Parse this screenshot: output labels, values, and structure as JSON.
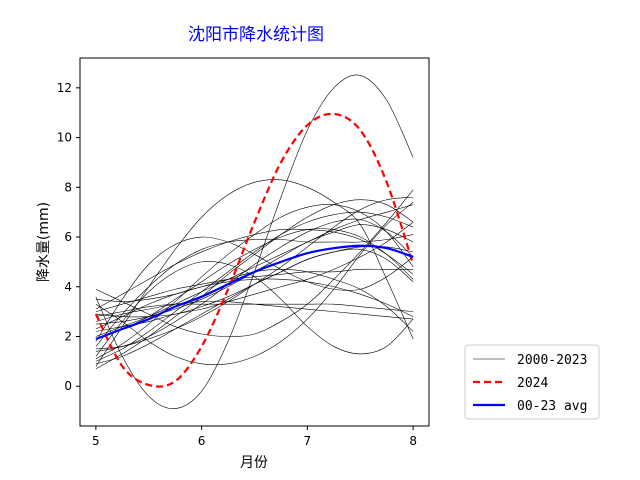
{
  "chart_data": {
    "type": "line",
    "title": "沈阳市降水统计图",
    "xlabel": "月份",
    "ylabel": "降水量(mm)",
    "xlim": [
      4.85,
      8.15
    ],
    "ylim": [
      -1.6,
      13.2
    ],
    "xticks": [
      5,
      6,
      7,
      8
    ],
    "yticks": [
      0,
      2,
      4,
      6,
      8,
      10,
      12
    ],
    "grid": false,
    "legend_position": "bottom-right outside",
    "x": [
      5,
      5.25,
      5.5,
      5.75,
      6,
      6.25,
      6.5,
      6.75,
      7,
      7.25,
      7.5,
      7.75,
      8
    ],
    "series": [
      {
        "name": "2000-2023",
        "color": "#000000",
        "style": "solid",
        "width": 0.6,
        "group": "history",
        "lines": [
          [
            3.6,
            1.2,
            -0.4,
            -0.9,
            -0.2,
            1.8,
            4.6,
            7.6,
            10.3,
            12.0,
            12.5,
            11.5,
            9.2
          ],
          [
            0.8,
            2.4,
            4.0,
            5.5,
            6.8,
            7.7,
            8.2,
            8.3,
            8.0,
            7.4,
            6.5,
            4.3,
            1.9
          ],
          [
            1.2,
            2.6,
            3.8,
            4.6,
            5.0,
            4.9,
            4.4,
            3.5,
            2.4,
            1.6,
            1.3,
            1.6,
            2.7
          ],
          [
            2.8,
            3.0,
            3.2,
            3.3,
            3.3,
            3.3,
            3.3,
            3.3,
            3.3,
            3.3,
            3.2,
            3.1,
            3.0
          ],
          [
            2.0,
            2.4,
            2.8,
            3.3,
            3.8,
            4.3,
            4.8,
            5.3,
            5.8,
            6.3,
            6.7,
            7.0,
            7.3
          ],
          [
            3.0,
            3.3,
            3.6,
            3.9,
            4.1,
            4.3,
            4.4,
            4.5,
            4.6,
            4.6,
            4.7,
            4.7,
            4.7
          ],
          [
            1.0,
            1.5,
            2.2,
            3.0,
            3.8,
            4.6,
            5.4,
            6.1,
            6.6,
            6.9,
            7.0,
            6.8,
            6.4
          ],
          [
            3.3,
            2.6,
            1.8,
            1.2,
            0.9,
            0.9,
            1.2,
            1.8,
            2.7,
            3.9,
            5.3,
            6.5,
            7.4
          ],
          [
            1.6,
            2.9,
            4.0,
            4.9,
            5.5,
            5.8,
            5.9,
            5.9,
            5.8,
            5.8,
            5.8,
            5.9,
            6.1
          ],
          [
            2.3,
            2.8,
            3.3,
            3.7,
            4.0,
            4.2,
            4.3,
            4.3,
            4.2,
            4.0,
            3.7,
            3.3,
            2.8
          ],
          [
            0.7,
            1.3,
            2.0,
            2.8,
            3.6,
            4.5,
            5.3,
            6.1,
            6.8,
            7.3,
            7.5,
            7.3,
            6.6
          ],
          [
            3.9,
            3.4,
            2.9,
            2.4,
            2.1,
            2.0,
            2.1,
            2.6,
            3.3,
            4.3,
            5.4,
            6.6,
            7.9
          ],
          [
            1.8,
            3.5,
            4.9,
            5.7,
            6.0,
            5.8,
            5.3,
            4.7,
            4.2,
            3.9,
            3.9,
            4.4,
            5.2
          ],
          [
            2.5,
            2.6,
            2.8,
            3.1,
            3.5,
            4.0,
            4.6,
            5.2,
            5.8,
            6.2,
            6.5,
            6.3,
            5.8
          ],
          [
            1.4,
            1.6,
            2.0,
            2.6,
            3.3,
            4.1,
            4.9,
            5.6,
            6.2,
            6.6,
            6.7,
            6.2,
            5.2
          ],
          [
            3.5,
            3.4,
            3.5,
            3.7,
            4.0,
            4.3,
            4.6,
            4.7,
            4.6,
            4.3,
            3.9,
            3.2,
            2.2
          ],
          [
            1.9,
            2.3,
            2.8,
            3.5,
            4.2,
            4.9,
            5.5,
            6.0,
            6.3,
            6.3,
            6.0,
            5.3,
            4.3
          ],
          [
            0.9,
            1.2,
            1.7,
            2.3,
            2.9,
            3.5,
            4.1,
            4.6,
            5.1,
            5.4,
            5.6,
            5.6,
            5.4
          ],
          [
            2.2,
            2.4,
            2.6,
            2.9,
            3.1,
            3.4,
            3.7,
            4.0,
            4.3,
            4.7,
            5.2,
            5.8,
            6.6
          ],
          [
            3.1,
            3.7,
            4.3,
            4.9,
            5.4,
            5.8,
            6.1,
            6.3,
            6.3,
            6.2,
            5.9,
            5.3,
            4.5
          ],
          [
            1.5,
            1.6,
            1.9,
            2.3,
            2.8,
            3.4,
            4.1,
            4.8,
            5.6,
            6.4,
            7.1,
            7.5,
            7.6
          ],
          [
            2.6,
            2.9,
            3.1,
            3.3,
            3.4,
            3.4,
            3.3,
            3.2,
            3.1,
            3.0,
            2.9,
            2.8,
            2.7
          ],
          [
            1.1,
            1.7,
            2.5,
            3.4,
            4.4,
            5.3,
            6.1,
            6.8,
            7.2,
            7.3,
            7.0,
            6.2,
            4.8
          ],
          [
            2.9,
            2.8,
            2.8,
            2.9,
            3.2,
            3.6,
            4.1,
            4.6,
            5.1,
            5.4,
            5.5,
            5.1,
            4.2
          ]
        ]
      },
      {
        "name": "2024",
        "color": "#ff0000",
        "style": "dashed",
        "width": 2.2,
        "group": "current",
        "values": [
          2.9,
          0.8,
          0.05,
          0.2,
          1.6,
          3.9,
          6.6,
          9.0,
          10.5,
          10.95,
          10.3,
          8.2,
          4.9
        ]
      },
      {
        "name": "00-23 avg",
        "color": "#0000ff",
        "style": "solid",
        "width": 2.2,
        "group": "average",
        "values": [
          1.9,
          2.3,
          2.7,
          3.2,
          3.6,
          4.1,
          4.6,
          5.0,
          5.35,
          5.55,
          5.65,
          5.55,
          5.2
        ]
      }
    ]
  }
}
